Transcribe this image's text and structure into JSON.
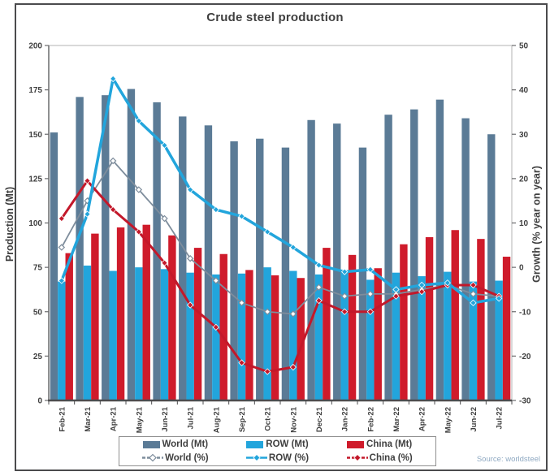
{
  "title": "Crude steel production",
  "source": "Source: worldsteel",
  "axes": {
    "left_label": "Production (Mt)",
    "right_label": "Growth (% year on year)"
  },
  "legend": {
    "items": [
      {
        "label": "World (Mt)",
        "type": "bar",
        "color": "#5b7b96"
      },
      {
        "label": "ROW (Mt)",
        "type": "bar",
        "color": "#22a5dc"
      },
      {
        "label": "China (Mt)",
        "type": "bar",
        "color": "#cf1b2b"
      },
      {
        "label": "World (%)",
        "type": "line",
        "color": "#7e8d9c",
        "marker": "hollow-diamond",
        "dashed": true
      },
      {
        "label": "ROW (%)",
        "type": "line",
        "color": "#22a5dc",
        "marker": "diamond",
        "dashed": false
      },
      {
        "label": "China (%)",
        "type": "line",
        "color": "#c3182a",
        "marker": "diamond",
        "dashed": true
      }
    ]
  },
  "chart_data": {
    "type": "combo bar+line",
    "categories": [
      "Feb-21",
      "Mar-21",
      "Apr-21",
      "May-21",
      "Jun-21",
      "Jul-21",
      "Aug-21",
      "Sep-21",
      "Oct-21",
      "Nov-21",
      "Dec-21",
      "Jan-22",
      "Feb-22",
      "Mar-22",
      "Apr-22",
      "May-22",
      "Jun-22",
      "Jul-22"
    ],
    "bar_series": [
      {
        "name": "World (Mt)",
        "axis": "left",
        "color": "#5b7b96",
        "values": [
          151,
          171,
          172,
          175.5,
          168,
          160,
          155,
          146,
          147.5,
          142.5,
          158,
          156,
          142.5,
          161,
          164,
          169.5,
          159,
          150
        ]
      },
      {
        "name": "ROW (Mt)",
        "axis": "left",
        "color": "#22a5dc",
        "values": [
          67,
          76,
          73,
          75,
          74,
          72,
          71,
          71.5,
          75,
          73,
          71,
          73,
          68,
          72,
          70,
          72.5,
          67,
          67.5
        ]
      },
      {
        "name": "China (Mt)",
        "axis": "left",
        "color": "#cf1b2b",
        "values": [
          83,
          94,
          97.5,
          99,
          93,
          86,
          82.5,
          73.5,
          70.5,
          69,
          86,
          82,
          74.5,
          88,
          92,
          96,
          91,
          81
        ]
      }
    ],
    "line_series": [
      {
        "name": "World (%)",
        "axis": "right",
        "color": "#7e8d9c",
        "width": 1.8,
        "marker": "hollow-diamond",
        "values": [
          4.5,
          15,
          24,
          17.5,
          11,
          2,
          -3,
          -8,
          -10,
          -10.5,
          -4.5,
          -6.5,
          -6,
          -6,
          -5,
          -4,
          -6,
          -6.5
        ]
      },
      {
        "name": "China (%)",
        "axis": "right",
        "color": "#c3182a",
        "width": 3,
        "marker": "diamond",
        "values": [
          11,
          19.5,
          13,
          8,
          1,
          -8.5,
          -13.5,
          -21.5,
          -23.5,
          -22.5,
          -7.5,
          -10,
          -10,
          -6.5,
          -5.5,
          -4,
          -4,
          -6.5
        ]
      },
      {
        "name": "ROW (%)",
        "axis": "right",
        "color": "#22a5dc",
        "width": 3.5,
        "marker": "diamond",
        "values": [
          -3,
          12,
          42.5,
          33,
          27.5,
          17.5,
          13,
          11.5,
          8,
          4.5,
          0.5,
          -1,
          -0.5,
          -5,
          -4,
          -3.5,
          -8,
          -7
        ]
      }
    ],
    "left_axis": {
      "label": "Production (Mt)",
      "min": 0,
      "max": 200,
      "ticks": [
        0,
        25,
        50,
        75,
        100,
        125,
        150,
        175,
        200
      ]
    },
    "right_axis": {
      "label": "Growth (% year on year)",
      "min": -30,
      "max": 50,
      "ticks": [
        -30,
        -20,
        -10,
        0,
        10,
        20,
        30,
        40,
        50
      ]
    },
    "grid": false,
    "legend_position": "bottom"
  }
}
